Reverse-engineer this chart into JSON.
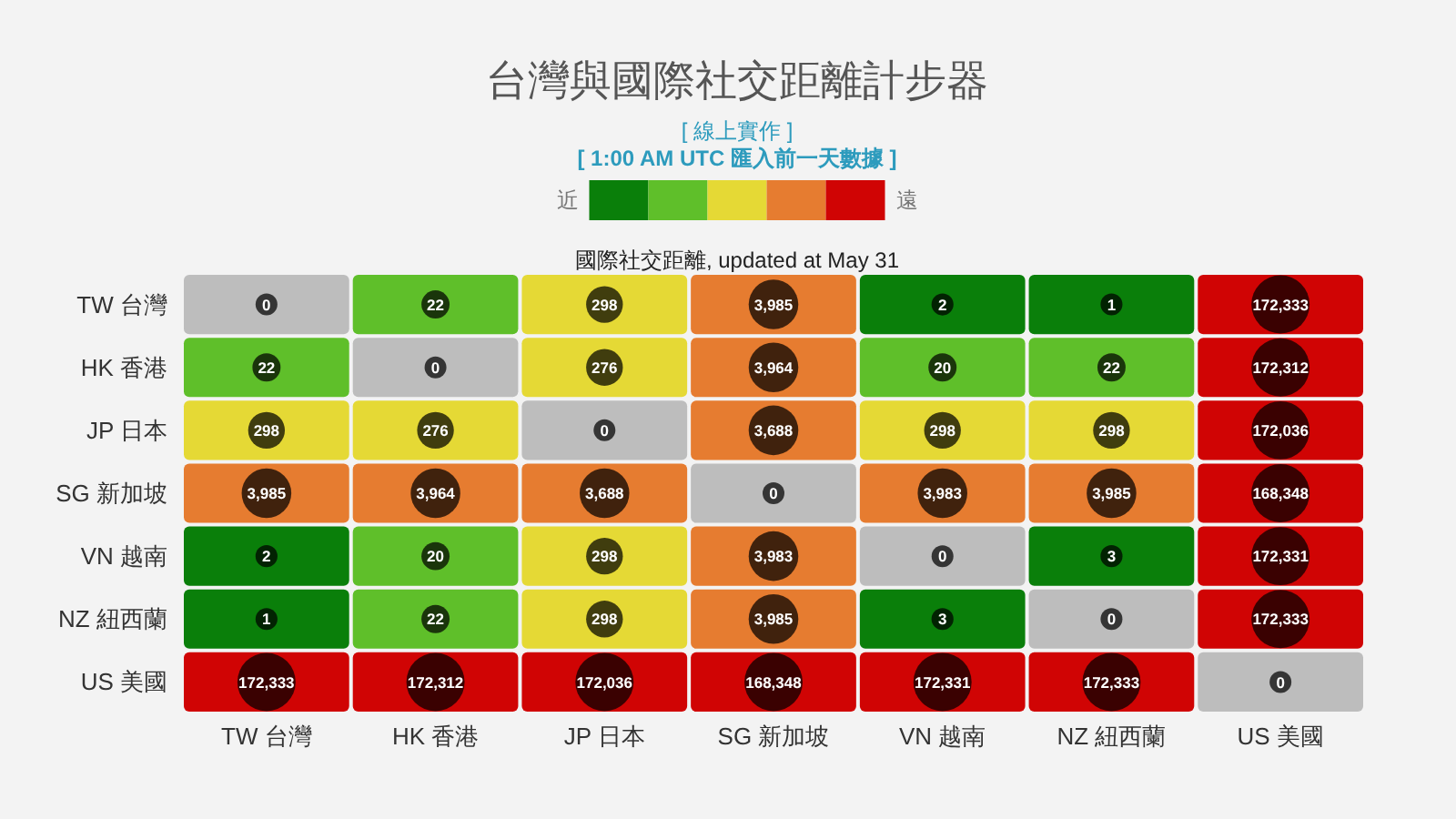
{
  "chart_data": {
    "type": "heatmap",
    "title": "台灣與國際社交距離計步器",
    "subtitle": "國際社交距離, updated at May 31",
    "annotations": [
      "[ 線上實作 ]",
      "[ 1:00 AM UTC 匯入前一天數據 ]",
      "近",
      "遠"
    ],
    "categories": [
      "TW 台灣",
      "HK 香港",
      "JP 日本",
      "SG 新加坡",
      "VN 越南",
      "NZ 紐西蘭",
      "US 美國"
    ],
    "y_categories": [
      "TW 台灣",
      "HK 香港",
      "JP 日本",
      "SG 新加坡",
      "VN 越南",
      "NZ 紐西蘭",
      "US 美國"
    ],
    "cells": [
      [
        0,
        22,
        298,
        3985,
        2,
        1,
        172333
      ],
      [
        22,
        0,
        276,
        3964,
        20,
        22,
        172312
      ],
      [
        298,
        276,
        0,
        3688,
        298,
        298,
        172036
      ],
      [
        3985,
        3964,
        3688,
        0,
        3983,
        3985,
        168348
      ],
      [
        2,
        20,
        298,
        3983,
        0,
        3,
        172331
      ],
      [
        1,
        22,
        298,
        3985,
        3,
        0,
        172333
      ],
      [
        172333,
        172312,
        172036,
        168348,
        172331,
        172333,
        0
      ]
    ],
    "cell_labels": [
      [
        "0",
        "22",
        "298",
        "3,985",
        "2",
        "1",
        "172,333"
      ],
      [
        "22",
        "0",
        "276",
        "3,964",
        "20",
        "22",
        "172,312"
      ],
      [
        "298",
        "276",
        "0",
        "3,688",
        "298",
        "298",
        "172,036"
      ],
      [
        "3,985",
        "3,964",
        "3,688",
        "0",
        "3,983",
        "3,985",
        "168,348"
      ],
      [
        "2",
        "20",
        "298",
        "3,983",
        "0",
        "3",
        "172,331"
      ],
      [
        "1",
        "22",
        "298",
        "3,985",
        "3",
        "0",
        "172,333"
      ],
      [
        "172,333",
        "172,312",
        "172,036",
        "168,348",
        "172,331",
        "172,333",
        "0"
      ]
    ],
    "colors": [
      "#bdbdbd",
      "#0a7f0a",
      "#5fbf2a",
      "#e5d935",
      "#e67c30",
      "#d00404"
    ]
  }
}
